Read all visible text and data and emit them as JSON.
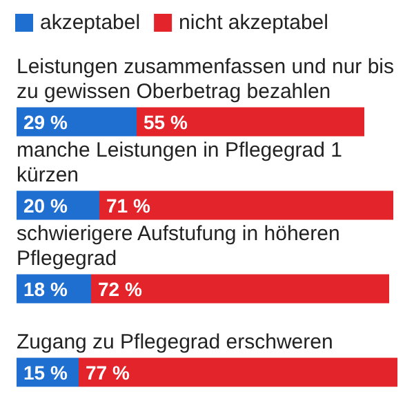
{
  "chart_data": {
    "type": "bar",
    "orientation": "horizontal",
    "stacked": true,
    "legend": "top left",
    "categories": [
      "Leistungen zusammenfassen und nur bis zu gewissen Oberbetrag bezahlen",
      "manche Leistungen in Pflegegrad 1 kürzen",
      "schwierigere Aufstufung in höheren Pflegegrad",
      "Zugang zu Pflegegrad erschweren"
    ],
    "series": [
      {
        "name": "akzeptabel",
        "color": "#1f6fd1",
        "values": [
          29,
          20,
          18,
          15
        ],
        "value_labels": [
          "29 %",
          "20 %",
          "18 %",
          "15 %"
        ]
      },
      {
        "name": "nicht akzeptabel",
        "color": "#e3242b",
        "values": [
          55,
          71,
          72,
          77
        ],
        "value_labels": [
          "55 %",
          "71 %",
          "72 %",
          "77 %"
        ]
      }
    ]
  }
}
